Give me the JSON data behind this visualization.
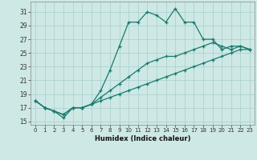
{
  "xlabel": "Humidex (Indice chaleur)",
  "background_color": "#cde8e5",
  "grid_color": "#a8cecc",
  "line_color": "#1a7a6e",
  "xlim": [
    -0.5,
    23.5
  ],
  "ylim": [
    14.5,
    32.5
  ],
  "xticks": [
    0,
    1,
    2,
    3,
    4,
    5,
    6,
    7,
    8,
    9,
    10,
    11,
    12,
    13,
    14,
    15,
    16,
    17,
    18,
    19,
    20,
    21,
    22,
    23
  ],
  "yticks": [
    15,
    17,
    19,
    21,
    23,
    25,
    27,
    29,
    31
  ],
  "line1_x": [
    0,
    1,
    2,
    3,
    4,
    5,
    6,
    7,
    8,
    9,
    10,
    11,
    12,
    13,
    14,
    15,
    16,
    17,
    18,
    19,
    20,
    21,
    22,
    23
  ],
  "line1_y": [
    18.0,
    17.0,
    16.5,
    16.0,
    17.0,
    17.0,
    17.5,
    18.0,
    18.5,
    19.0,
    19.5,
    20.0,
    20.5,
    21.0,
    21.5,
    22.0,
    22.5,
    23.0,
    23.5,
    24.0,
    24.5,
    25.0,
    25.5,
    25.5
  ],
  "line2_x": [
    0,
    1,
    2,
    3,
    4,
    5,
    6,
    7,
    8,
    9,
    10,
    11,
    12,
    13,
    14,
    15,
    16,
    17,
    18,
    19,
    20,
    21,
    22,
    23
  ],
  "line2_y": [
    18.0,
    17.0,
    16.5,
    16.0,
    17.0,
    17.0,
    17.5,
    18.5,
    19.5,
    20.5,
    21.5,
    22.5,
    23.5,
    24.0,
    24.5,
    24.5,
    25.0,
    25.5,
    26.0,
    26.5,
    26.0,
    25.5,
    26.0,
    25.5
  ],
  "line3_x": [
    0,
    1,
    2,
    3,
    4,
    5,
    6,
    7,
    8,
    9,
    10,
    11,
    12,
    13,
    14,
    15,
    16,
    17,
    18,
    19,
    20,
    21,
    22,
    23
  ],
  "line3_y": [
    18.0,
    17.0,
    16.5,
    15.5,
    17.0,
    17.0,
    17.5,
    19.5,
    22.5,
    26.0,
    29.5,
    29.5,
    31.0,
    30.5,
    29.5,
    31.5,
    29.5,
    29.5,
    27.0,
    27.0,
    25.5,
    26.0,
    26.0,
    25.5
  ]
}
